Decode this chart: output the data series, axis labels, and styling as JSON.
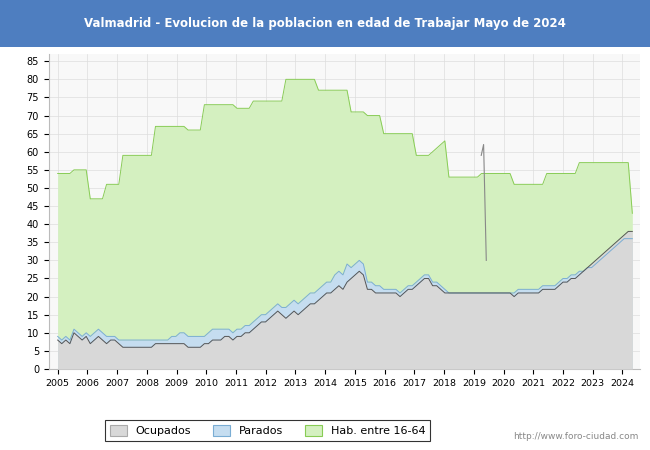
{
  "title": "Valmadrid - Evolucion de la poblacion en edad de Trabajar Mayo de 2024",
  "title_bg_color": "#4e7ec0",
  "title_text_color": "white",
  "ylim": [
    0,
    87
  ],
  "yticks": [
    0,
    5,
    10,
    15,
    20,
    25,
    30,
    35,
    40,
    45,
    50,
    55,
    60,
    65,
    70,
    75,
    80,
    85
  ],
  "watermark": "http://www.foro-ciudad.com",
  "legend_labels": [
    "Ocupados",
    "Parados",
    "Hab. entre 16-64"
  ],
  "ocupados_color": "#d8d8d8",
  "parados_color": "#c5ddf0",
  "hab_color": "#d4f0c0",
  "ocupados_line_color": "#555555",
  "parados_line_color": "#7aadd4",
  "hab_line_color": "#88cc55",
  "background_color": "#f8f8f8",
  "grid_color": "#dddddd",
  "hab_data": [
    54,
    54,
    54,
    54,
    55,
    55,
    55,
    55,
    47,
    47,
    47,
    47,
    51,
    51,
    51,
    51,
    59,
    59,
    59,
    59,
    59,
    59,
    59,
    59,
    67,
    67,
    67,
    67,
    67,
    67,
    67,
    67,
    66,
    66,
    66,
    66,
    73,
    73,
    73,
    73,
    73,
    73,
    73,
    73,
    72,
    72,
    72,
    72,
    74,
    74,
    74,
    74,
    74,
    74,
    74,
    74,
    80,
    80,
    80,
    80,
    80,
    80,
    80,
    80,
    77,
    77,
    77,
    77,
    77,
    77,
    77,
    77,
    71,
    71,
    71,
    71,
    70,
    70,
    70,
    70,
    65,
    65,
    65,
    65,
    65,
    65,
    65,
    65,
    59,
    59,
    59,
    59,
    60,
    61,
    62,
    63,
    53,
    53,
    53,
    53,
    53,
    53,
    53,
    53,
    54,
    54,
    54,
    54,
    54,
    54,
    54,
    54,
    51,
    51,
    51,
    51,
    51,
    51,
    51,
    51,
    54,
    54,
    54,
    54,
    54,
    54,
    54,
    54,
    57,
    57,
    57,
    57,
    57,
    57,
    57,
    57,
    57,
    57,
    57,
    57,
    57,
    43
  ],
  "ocupados_data": [
    8,
    7,
    8,
    7,
    10,
    9,
    8,
    9,
    7,
    8,
    9,
    8,
    7,
    8,
    8,
    7,
    6,
    6,
    6,
    6,
    6,
    6,
    6,
    6,
    7,
    7,
    7,
    7,
    7,
    7,
    7,
    7,
    6,
    6,
    6,
    6,
    7,
    7,
    8,
    8,
    8,
    9,
    9,
    8,
    9,
    9,
    10,
    10,
    11,
    12,
    13,
    13,
    14,
    15,
    16,
    15,
    14,
    15,
    16,
    15,
    16,
    17,
    18,
    18,
    19,
    20,
    21,
    21,
    22,
    23,
    22,
    24,
    25,
    26,
    27,
    26,
    22,
    22,
    21,
    21,
    21,
    21,
    21,
    21,
    20,
    21,
    22,
    22,
    23,
    24,
    25,
    25,
    23,
    23,
    22,
    21,
    21,
    21,
    21,
    21,
    21,
    21,
    21,
    21,
    21,
    21,
    21,
    21,
    21,
    21,
    21,
    21,
    20,
    21,
    21,
    21,
    21,
    21,
    21,
    22,
    22,
    22,
    22,
    23,
    24,
    24,
    25,
    25,
    26,
    27,
    28,
    29,
    30,
    31,
    32,
    33,
    34,
    35,
    36,
    37,
    38,
    38
  ],
  "parados_data": [
    9,
    8,
    9,
    8,
    11,
    10,
    9,
    10,
    9,
    10,
    11,
    10,
    9,
    9,
    9,
    8,
    8,
    8,
    8,
    8,
    8,
    8,
    8,
    8,
    8,
    8,
    8,
    8,
    9,
    9,
    10,
    10,
    9,
    9,
    9,
    9,
    9,
    10,
    11,
    11,
    11,
    11,
    11,
    10,
    11,
    11,
    12,
    12,
    13,
    14,
    15,
    15,
    16,
    17,
    18,
    17,
    17,
    18,
    19,
    18,
    19,
    20,
    21,
    21,
    22,
    23,
    24,
    24,
    26,
    27,
    26,
    29,
    28,
    29,
    30,
    29,
    24,
    24,
    23,
    23,
    22,
    22,
    22,
    22,
    21,
    22,
    23,
    23,
    24,
    25,
    26,
    26,
    24,
    24,
    23,
    22,
    21,
    21,
    21,
    21,
    21,
    21,
    21,
    21,
    21,
    21,
    21,
    21,
    21,
    21,
    21,
    21,
    21,
    22,
    22,
    22,
    22,
    22,
    22,
    23,
    23,
    23,
    23,
    24,
    25,
    25,
    26,
    26,
    27,
    27,
    28,
    28,
    29,
    30,
    31,
    32,
    33,
    34,
    35,
    36,
    36,
    36
  ]
}
